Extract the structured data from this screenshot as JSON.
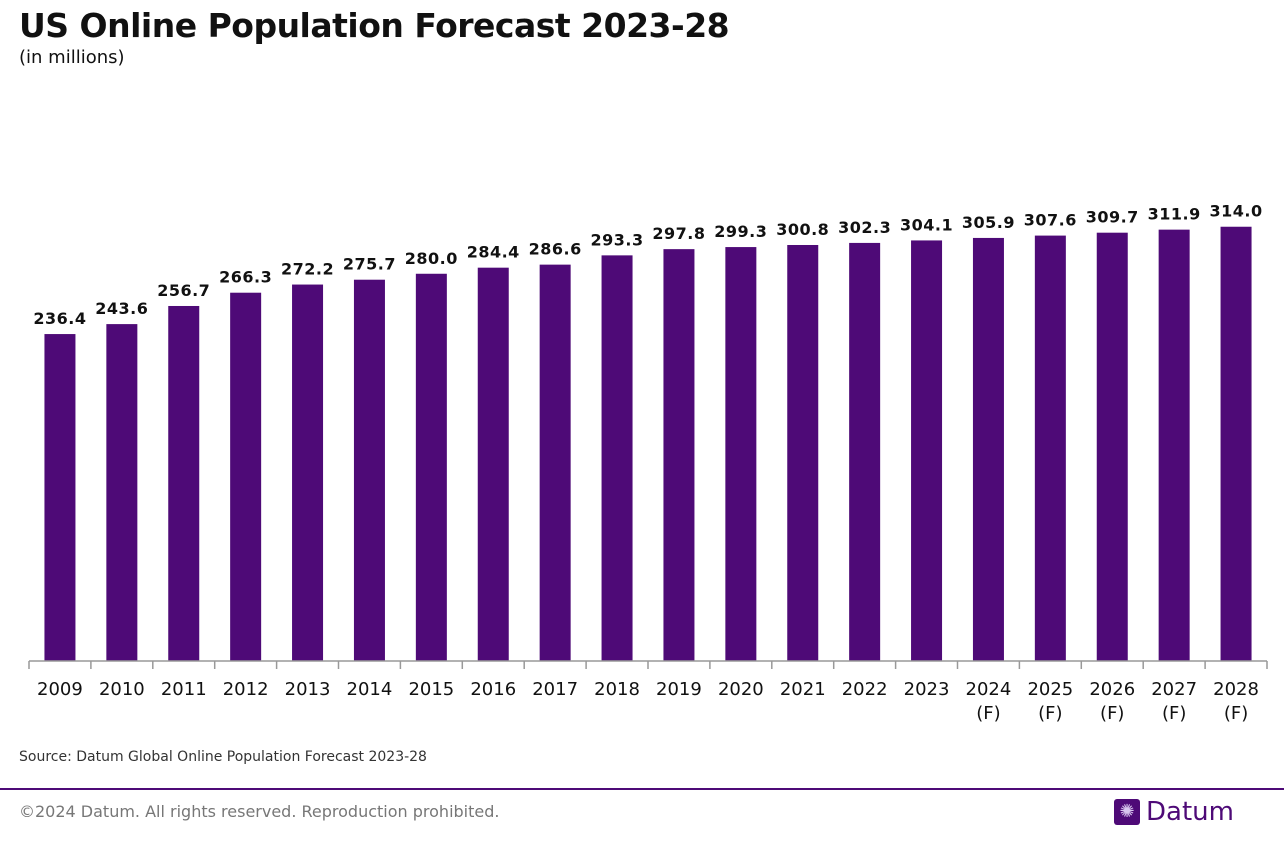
{
  "header": {
    "title": "US Online Population Forecast 2023-28",
    "subtitle": "(in millions)"
  },
  "chart_data": {
    "type": "bar",
    "categories": [
      "2009",
      "2010",
      "2011",
      "2012",
      "2013",
      "2014",
      "2015",
      "2016",
      "2017",
      "2018",
      "2019",
      "2020",
      "2021",
      "2022",
      "2023",
      "2024\n(F)",
      "2025\n(F)",
      "2026\n(F)",
      "2027\n(F)",
      "2028\n(F)"
    ],
    "values": [
      236.4,
      243.6,
      256.7,
      266.3,
      272.2,
      275.7,
      280.0,
      284.4,
      286.6,
      293.3,
      297.8,
      299.3,
      300.8,
      302.3,
      304.1,
      305.9,
      307.6,
      309.7,
      311.9,
      314.0
    ],
    "title": "US Online Population Forecast 2023-28",
    "ylabel": "(in millions)",
    "ylim": [
      0,
      360
    ],
    "grid": false,
    "bar_color": "#4e0a77",
    "data_labels": true
  },
  "footer": {
    "source": "Source: Datum Global Online Population Forecast 2023-28",
    "copyright": "©2024 Datum. All rights reserved. Reproduction prohibited.",
    "brand": "Datum",
    "brand_color": "#4e0a77"
  }
}
